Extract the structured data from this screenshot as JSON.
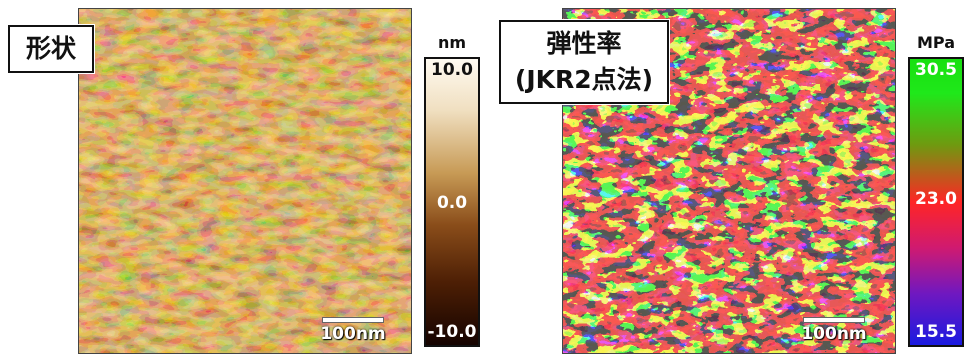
{
  "topography": {
    "label": "形状",
    "scale_bar": "100nm",
    "colorbar": {
      "unit": "nm",
      "max": "10.0",
      "mid": "0.0",
      "min": "-10.0"
    }
  },
  "modulus": {
    "label_line1": "弾性率",
    "label_line2": "(JKR2点法)",
    "scale_bar": "100nm",
    "colorbar": {
      "unit": "MPa",
      "max": "30.5",
      "mid": "23.0",
      "min": "15.5"
    }
  }
}
